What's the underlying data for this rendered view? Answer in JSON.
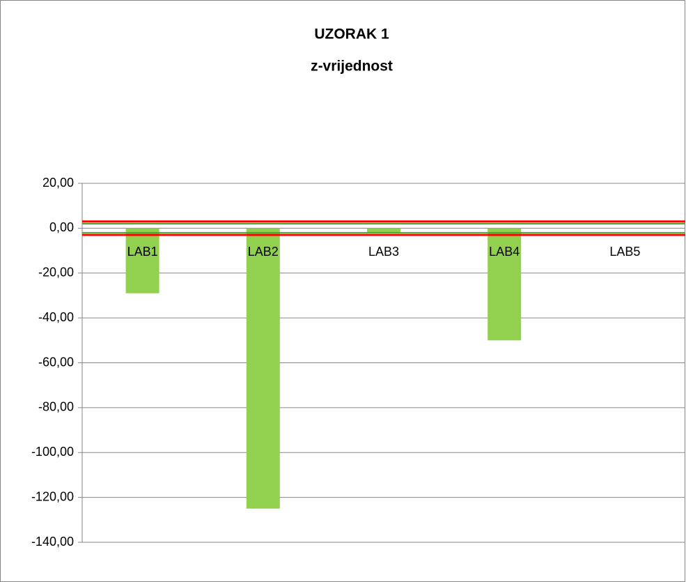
{
  "chart_data": {
    "type": "bar",
    "title": "UZORAK 1",
    "subtitle": "z-vrijednost",
    "categories": [
      "LAB1",
      "LAB2",
      "LAB3",
      "LAB4",
      "LAB5"
    ],
    "values": [
      -29,
      -125,
      -2,
      -50,
      null
    ],
    "color": "#92d050",
    "ylim": [
      -140,
      20
    ],
    "yticks": [
      {
        "value": 20,
        "label": "20,00"
      },
      {
        "value": 0,
        "label": "0,00"
      },
      {
        "value": -20,
        "label": "-20,00"
      },
      {
        "value": -40,
        "label": "-40,00"
      },
      {
        "value": -60,
        "label": "-60,00"
      },
      {
        "value": -80,
        "label": "-80,00"
      },
      {
        "value": -100,
        "label": "-100,00"
      },
      {
        "value": -120,
        "label": "-120,00"
      },
      {
        "value": -140,
        "label": "-140,00"
      }
    ],
    "grid": true,
    "reference_lines": [
      {
        "value": 2,
        "color": "#4ea72e"
      },
      {
        "value": -2,
        "color": "#4ea72e"
      },
      {
        "value": 3,
        "color": "#ff0000"
      },
      {
        "value": -3,
        "color": "#ff0000"
      }
    ]
  }
}
